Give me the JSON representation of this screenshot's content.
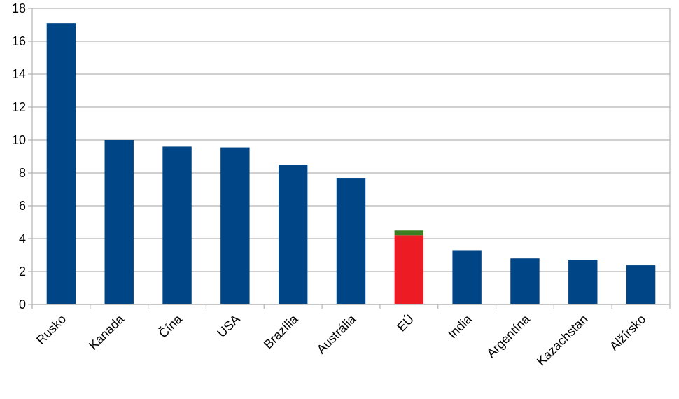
{
  "chart_data": {
    "type": "bar",
    "categories": [
      "Rusko",
      "Kanada",
      "Čína",
      "USA",
      "Brazília",
      "Austrália",
      "EÚ",
      "India",
      "Argentína",
      "Kazachstan",
      "Alžírsko"
    ],
    "values": [
      17.1,
      10.0,
      9.6,
      9.55,
      8.5,
      7.7,
      4.5,
      3.3,
      2.8,
      2.72,
      2.38
    ],
    "stacked_segments": {
      "EÚ": [
        {
          "value": 4.2,
          "color": "#ed1c24"
        },
        {
          "value": 0.3,
          "color": "#3a7d22"
        }
      ]
    },
    "ylim": [
      0,
      18
    ],
    "yticks": [
      0,
      2,
      4,
      6,
      8,
      10,
      12,
      14,
      16,
      18
    ],
    "grid": true,
    "bar_color": "#004586",
    "title": "",
    "xlabel": "",
    "ylabel": ""
  }
}
